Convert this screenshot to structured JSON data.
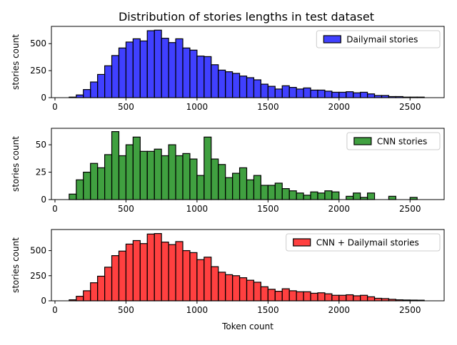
{
  "figure_title": "Distribution of stories lengths in test dataset",
  "chart_data": [
    {
      "type": "bar",
      "subtype": "histogram",
      "legend": "Dailymail stories",
      "legend_position": "upper right",
      "color": "#0000ff",
      "edge_color": "#000000",
      "ylabel": "stories count",
      "xlabel": "",
      "xlim": [
        -25,
        2740
      ],
      "ylim": [
        0,
        660
      ],
      "xticks": [
        0,
        500,
        1000,
        1500,
        2000,
        2500
      ],
      "yticks": [
        0,
        250,
        500
      ],
      "bins": [
        {
          "x0": 100,
          "x1": 150,
          "count": 5
        },
        {
          "x0": 150,
          "x1": 200,
          "count": 25
        },
        {
          "x0": 200,
          "x1": 250,
          "count": 75
        },
        {
          "x0": 250,
          "x1": 300,
          "count": 145
        },
        {
          "x0": 300,
          "x1": 350,
          "count": 215
        },
        {
          "x0": 350,
          "x1": 400,
          "count": 295
        },
        {
          "x0": 400,
          "x1": 450,
          "count": 390
        },
        {
          "x0": 450,
          "x1": 500,
          "count": 460
        },
        {
          "x0": 500,
          "x1": 550,
          "count": 515
        },
        {
          "x0": 550,
          "x1": 600,
          "count": 545
        },
        {
          "x0": 600,
          "x1": 650,
          "count": 525
        },
        {
          "x0": 650,
          "x1": 700,
          "count": 620
        },
        {
          "x0": 700,
          "x1": 750,
          "count": 625
        },
        {
          "x0": 750,
          "x1": 800,
          "count": 550
        },
        {
          "x0": 800,
          "x1": 850,
          "count": 510
        },
        {
          "x0": 850,
          "x1": 900,
          "count": 545
        },
        {
          "x0": 900,
          "x1": 950,
          "count": 460
        },
        {
          "x0": 950,
          "x1": 1000,
          "count": 440
        },
        {
          "x0": 1000,
          "x1": 1050,
          "count": 385
        },
        {
          "x0": 1050,
          "x1": 1100,
          "count": 380
        },
        {
          "x0": 1100,
          "x1": 1150,
          "count": 305
        },
        {
          "x0": 1150,
          "x1": 1200,
          "count": 255
        },
        {
          "x0": 1200,
          "x1": 1250,
          "count": 240
        },
        {
          "x0": 1250,
          "x1": 1300,
          "count": 225
        },
        {
          "x0": 1300,
          "x1": 1350,
          "count": 200
        },
        {
          "x0": 1350,
          "x1": 1400,
          "count": 185
        },
        {
          "x0": 1400,
          "x1": 1450,
          "count": 165
        },
        {
          "x0": 1450,
          "x1": 1500,
          "count": 125
        },
        {
          "x0": 1500,
          "x1": 1550,
          "count": 105
        },
        {
          "x0": 1550,
          "x1": 1600,
          "count": 80
        },
        {
          "x0": 1600,
          "x1": 1650,
          "count": 110
        },
        {
          "x0": 1650,
          "x1": 1700,
          "count": 95
        },
        {
          "x0": 1700,
          "x1": 1750,
          "count": 80
        },
        {
          "x0": 1750,
          "x1": 1800,
          "count": 90
        },
        {
          "x0": 1800,
          "x1": 1850,
          "count": 70
        },
        {
          "x0": 1850,
          "x1": 1900,
          "count": 70
        },
        {
          "x0": 1900,
          "x1": 1950,
          "count": 60
        },
        {
          "x0": 1950,
          "x1": 2000,
          "count": 50
        },
        {
          "x0": 2000,
          "x1": 2050,
          "count": 50
        },
        {
          "x0": 2050,
          "x1": 2100,
          "count": 55
        },
        {
          "x0": 2100,
          "x1": 2150,
          "count": 45
        },
        {
          "x0": 2150,
          "x1": 2200,
          "count": 50
        },
        {
          "x0": 2200,
          "x1": 2250,
          "count": 35
        },
        {
          "x0": 2250,
          "x1": 2300,
          "count": 20
        },
        {
          "x0": 2300,
          "x1": 2350,
          "count": 20
        },
        {
          "x0": 2350,
          "x1": 2400,
          "count": 10
        },
        {
          "x0": 2400,
          "x1": 2450,
          "count": 10
        },
        {
          "x0": 2450,
          "x1": 2500,
          "count": 5
        },
        {
          "x0": 2500,
          "x1": 2550,
          "count": 5
        },
        {
          "x0": 2550,
          "x1": 2600,
          "count": 5
        }
      ]
    },
    {
      "type": "bar",
      "subtype": "histogram",
      "legend": "CNN stories",
      "legend_position": "upper right",
      "color": "#008000",
      "edge_color": "#000000",
      "ylabel": "stories count",
      "xlabel": "",
      "xlim": [
        -25,
        2740
      ],
      "ylim": [
        0,
        65
      ],
      "xticks": [
        0,
        500,
        1000,
        1500,
        2000,
        2500
      ],
      "yticks": [
        0,
        25,
        50
      ],
      "bins": [
        {
          "x0": 100,
          "x1": 150,
          "count": 5
        },
        {
          "x0": 150,
          "x1": 200,
          "count": 18
        },
        {
          "x0": 200,
          "x1": 250,
          "count": 25
        },
        {
          "x0": 250,
          "x1": 300,
          "count": 33
        },
        {
          "x0": 300,
          "x1": 350,
          "count": 29
        },
        {
          "x0": 350,
          "x1": 400,
          "count": 41
        },
        {
          "x0": 400,
          "x1": 450,
          "count": 62
        },
        {
          "x0": 450,
          "x1": 500,
          "count": 40
        },
        {
          "x0": 500,
          "x1": 550,
          "count": 50
        },
        {
          "x0": 550,
          "x1": 600,
          "count": 57
        },
        {
          "x0": 600,
          "x1": 650,
          "count": 44
        },
        {
          "x0": 650,
          "x1": 700,
          "count": 44
        },
        {
          "x0": 700,
          "x1": 750,
          "count": 46
        },
        {
          "x0": 750,
          "x1": 800,
          "count": 40
        },
        {
          "x0": 800,
          "x1": 850,
          "count": 50
        },
        {
          "x0": 850,
          "x1": 900,
          "count": 40
        },
        {
          "x0": 900,
          "x1": 950,
          "count": 42
        },
        {
          "x0": 950,
          "x1": 1000,
          "count": 37
        },
        {
          "x0": 1000,
          "x1": 1050,
          "count": 22
        },
        {
          "x0": 1050,
          "x1": 1100,
          "count": 57
        },
        {
          "x0": 1100,
          "x1": 1150,
          "count": 37
        },
        {
          "x0": 1150,
          "x1": 1200,
          "count": 32
        },
        {
          "x0": 1200,
          "x1": 1250,
          "count": 20
        },
        {
          "x0": 1250,
          "x1": 1300,
          "count": 24
        },
        {
          "x0": 1300,
          "x1": 1350,
          "count": 29
        },
        {
          "x0": 1350,
          "x1": 1400,
          "count": 18
        },
        {
          "x0": 1400,
          "x1": 1450,
          "count": 22
        },
        {
          "x0": 1450,
          "x1": 1500,
          "count": 13
        },
        {
          "x0": 1500,
          "x1": 1550,
          "count": 13
        },
        {
          "x0": 1550,
          "x1": 1600,
          "count": 15
        },
        {
          "x0": 1600,
          "x1": 1650,
          "count": 10
        },
        {
          "x0": 1650,
          "x1": 1700,
          "count": 8
        },
        {
          "x0": 1700,
          "x1": 1750,
          "count": 6
        },
        {
          "x0": 1750,
          "x1": 1800,
          "count": 4
        },
        {
          "x0": 1800,
          "x1": 1850,
          "count": 7
        },
        {
          "x0": 1850,
          "x1": 1900,
          "count": 6
        },
        {
          "x0": 1900,
          "x1": 1950,
          "count": 8
        },
        {
          "x0": 1950,
          "x1": 2000,
          "count": 7
        },
        {
          "x0": 2050,
          "x1": 2100,
          "count": 3
        },
        {
          "x0": 2100,
          "x1": 2150,
          "count": 6
        },
        {
          "x0": 2150,
          "x1": 2200,
          "count": 2
        },
        {
          "x0": 2200,
          "x1": 2250,
          "count": 6
        },
        {
          "x0": 2350,
          "x1": 2400,
          "count": 3
        },
        {
          "x0": 2500,
          "x1": 2550,
          "count": 2
        }
      ]
    },
    {
      "type": "bar",
      "subtype": "histogram",
      "legend": "CNN + Dailymail stories",
      "legend_position": "upper right",
      "color": "#ff0000",
      "edge_color": "#000000",
      "ylabel": "stories count",
      "xlabel": "Token count",
      "xlim": [
        -25,
        2740
      ],
      "ylim": [
        0,
        710
      ],
      "xticks": [
        0,
        500,
        1000,
        1500,
        2000,
        2500
      ],
      "yticks": [
        0,
        250,
        500
      ],
      "bins": [
        {
          "x0": 100,
          "x1": 150,
          "count": 10
        },
        {
          "x0": 150,
          "x1": 200,
          "count": 45
        },
        {
          "x0": 200,
          "x1": 250,
          "count": 100
        },
        {
          "x0": 250,
          "x1": 300,
          "count": 180
        },
        {
          "x0": 300,
          "x1": 350,
          "count": 245
        },
        {
          "x0": 350,
          "x1": 400,
          "count": 335
        },
        {
          "x0": 400,
          "x1": 450,
          "count": 450
        },
        {
          "x0": 450,
          "x1": 500,
          "count": 495
        },
        {
          "x0": 500,
          "x1": 550,
          "count": 565
        },
        {
          "x0": 550,
          "x1": 600,
          "count": 600
        },
        {
          "x0": 600,
          "x1": 650,
          "count": 570
        },
        {
          "x0": 650,
          "x1": 700,
          "count": 665
        },
        {
          "x0": 700,
          "x1": 750,
          "count": 670
        },
        {
          "x0": 750,
          "x1": 800,
          "count": 585
        },
        {
          "x0": 800,
          "x1": 850,
          "count": 560
        },
        {
          "x0": 850,
          "x1": 900,
          "count": 590
        },
        {
          "x0": 900,
          "x1": 950,
          "count": 500
        },
        {
          "x0": 950,
          "x1": 1000,
          "count": 480
        },
        {
          "x0": 1000,
          "x1": 1050,
          "count": 410
        },
        {
          "x0": 1050,
          "x1": 1100,
          "count": 435
        },
        {
          "x0": 1100,
          "x1": 1150,
          "count": 340
        },
        {
          "x0": 1150,
          "x1": 1200,
          "count": 285
        },
        {
          "x0": 1200,
          "x1": 1250,
          "count": 260
        },
        {
          "x0": 1250,
          "x1": 1300,
          "count": 250
        },
        {
          "x0": 1300,
          "x1": 1350,
          "count": 230
        },
        {
          "x0": 1350,
          "x1": 1400,
          "count": 205
        },
        {
          "x0": 1400,
          "x1": 1450,
          "count": 185
        },
        {
          "x0": 1450,
          "x1": 1500,
          "count": 140
        },
        {
          "x0": 1500,
          "x1": 1550,
          "count": 115
        },
        {
          "x0": 1550,
          "x1": 1600,
          "count": 95
        },
        {
          "x0": 1600,
          "x1": 1650,
          "count": 120
        },
        {
          "x0": 1650,
          "x1": 1700,
          "count": 100
        },
        {
          "x0": 1700,
          "x1": 1750,
          "count": 90
        },
        {
          "x0": 1750,
          "x1": 1800,
          "count": 90
        },
        {
          "x0": 1800,
          "x1": 1850,
          "count": 75
        },
        {
          "x0": 1850,
          "x1": 1900,
          "count": 80
        },
        {
          "x0": 1900,
          "x1": 1950,
          "count": 70
        },
        {
          "x0": 1950,
          "x1": 2000,
          "count": 55
        },
        {
          "x0": 2000,
          "x1": 2050,
          "count": 55
        },
        {
          "x0": 2050,
          "x1": 2100,
          "count": 60
        },
        {
          "x0": 2100,
          "x1": 2150,
          "count": 50
        },
        {
          "x0": 2150,
          "x1": 2200,
          "count": 55
        },
        {
          "x0": 2200,
          "x1": 2250,
          "count": 40
        },
        {
          "x0": 2250,
          "x1": 2300,
          "count": 25
        },
        {
          "x0": 2300,
          "x1": 2350,
          "count": 22
        },
        {
          "x0": 2350,
          "x1": 2400,
          "count": 15
        },
        {
          "x0": 2400,
          "x1": 2450,
          "count": 10
        },
        {
          "x0": 2450,
          "x1": 2500,
          "count": 8
        },
        {
          "x0": 2500,
          "x1": 2550,
          "count": 7
        },
        {
          "x0": 2550,
          "x1": 2600,
          "count": 6
        }
      ]
    }
  ]
}
